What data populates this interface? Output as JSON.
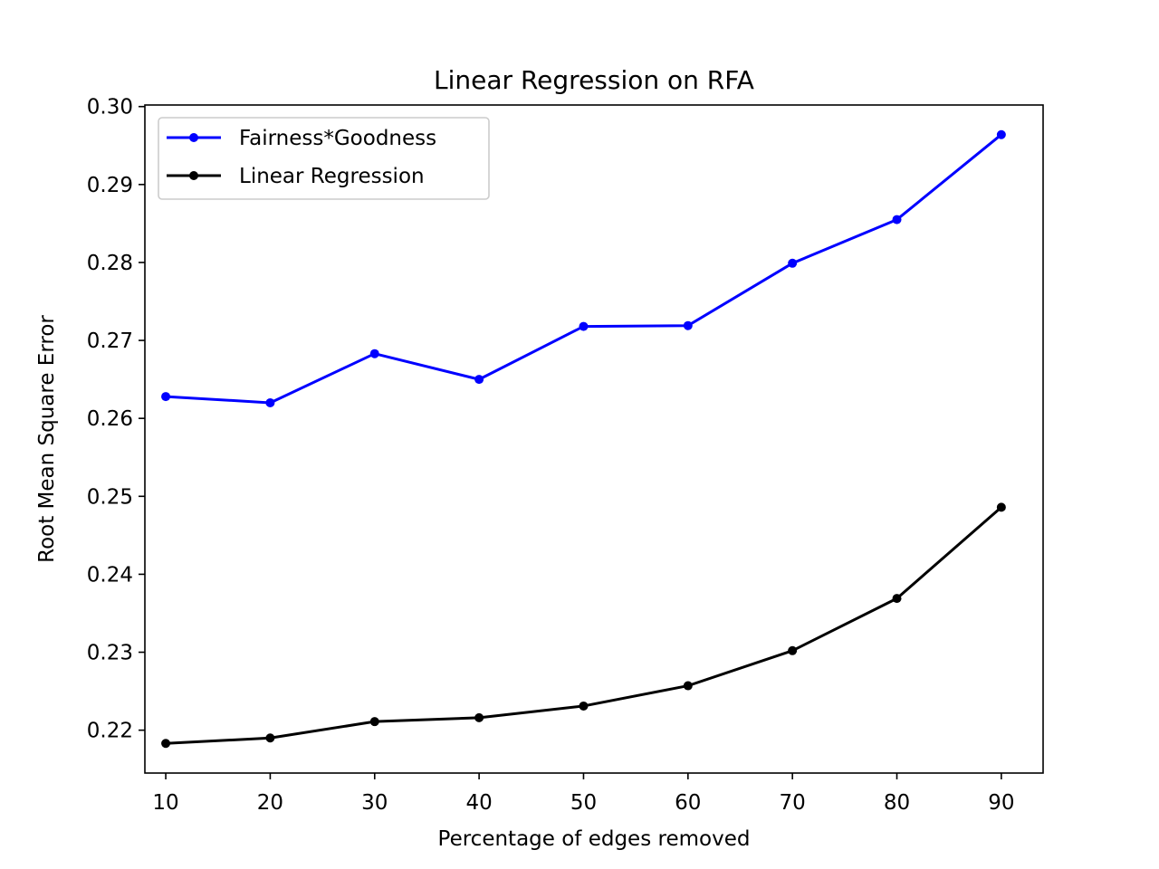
{
  "chart_data": {
    "type": "line",
    "title": "Linear Regression on RFA",
    "xlabel": "Percentage of edges removed",
    "ylabel": "Root Mean Square Error",
    "x": [
      10,
      20,
      30,
      40,
      50,
      60,
      70,
      80,
      90
    ],
    "xticks": [
      "10",
      "20",
      "30",
      "40",
      "50",
      "60",
      "70",
      "80",
      "90"
    ],
    "yticks": [
      "0.22",
      "0.23",
      "0.24",
      "0.25",
      "0.26",
      "0.27",
      "0.28",
      "0.29",
      "0.30"
    ],
    "xlim": [
      8,
      94
    ],
    "ylim": [
      0.2145,
      0.3002
    ],
    "grid": false,
    "legend_position": "upper left",
    "series": [
      {
        "name": "Fairness*Goodness",
        "color": "#0000ff",
        "marker": "circle",
        "values": [
          0.2628,
          0.262,
          0.2683,
          0.265,
          0.2718,
          0.2719,
          0.2799,
          0.2855,
          0.2964
        ]
      },
      {
        "name": "Linear Regression",
        "color": "#000000",
        "marker": "circle",
        "values": [
          0.2183,
          0.219,
          0.2211,
          0.2216,
          0.2231,
          0.2257,
          0.2302,
          0.2369,
          0.2486
        ]
      }
    ]
  }
}
